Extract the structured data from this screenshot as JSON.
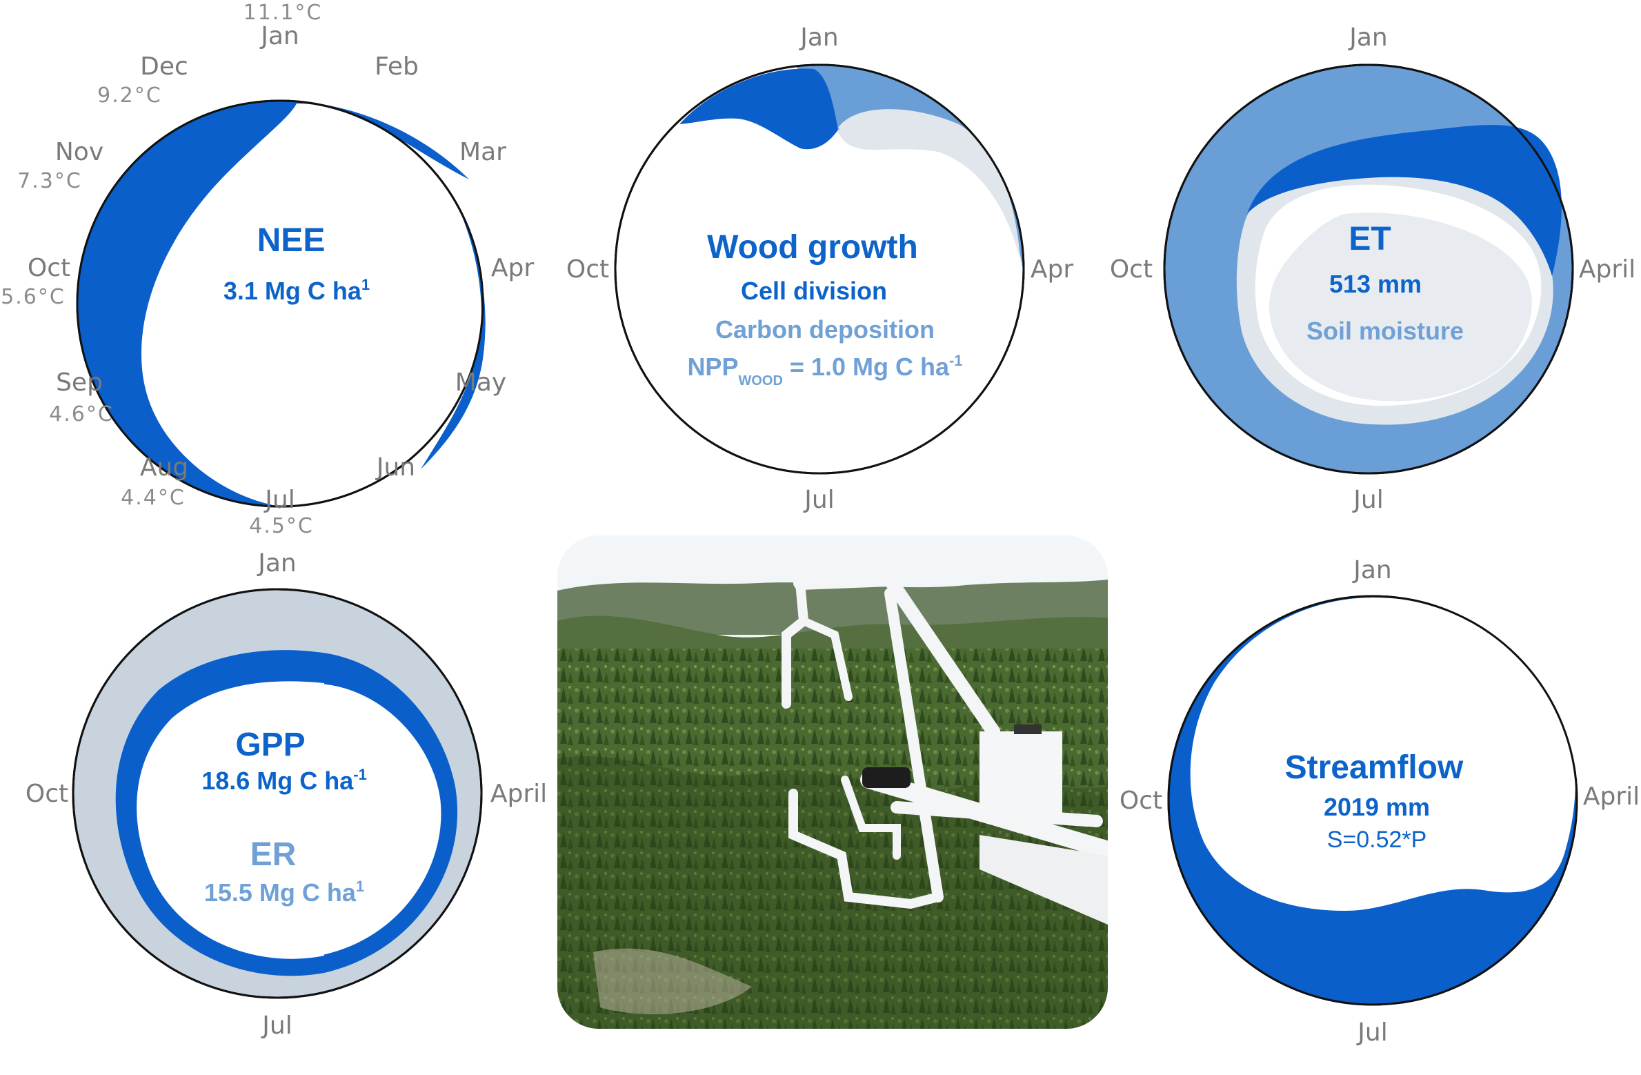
{
  "colors": {
    "dark_blue": "#0a5fcb",
    "mid_blue": "#6a9ed6",
    "light_grey_blue": "#c8d3de",
    "pale": "#e3e8ee",
    "outline": "#111111",
    "label_grey": "#7a7a7a"
  },
  "nee": {
    "months": {
      "jan": "Jan",
      "feb": "Feb",
      "mar": "Mar",
      "apr": "Apr",
      "may": "May",
      "jun": "Jun",
      "jul": "Jul",
      "aug": "Aug",
      "sep": "Sep",
      "oct": "Oct",
      "nov": "Nov",
      "dec": "Dec"
    },
    "temps": {
      "jan": "11.1°C",
      "dec": "9.2°C",
      "nov": "7.3°C",
      "oct": "5.6°C",
      "sep": "4.6°C",
      "aug": "4.4°C",
      "jul": "4.5°C"
    },
    "title": "NEE",
    "value": "3.1 Mg C ha",
    "value_sup": "1"
  },
  "wood": {
    "months": {
      "jan": "Jan",
      "apr": "Apr",
      "jul": "Jul",
      "oct": "Oct"
    },
    "title": "Wood growth",
    "line1": "Cell division",
    "line2": "Carbon deposition",
    "npp_prefix": "NPP",
    "npp_sub": "WOOD",
    "npp_value": " = 1.0 Mg C ha",
    "npp_sup": "-1"
  },
  "et": {
    "months": {
      "jan": "Jan",
      "apr": "April",
      "jul": "Jul",
      "oct": "Oct"
    },
    "title": "ET",
    "value": "513 mm",
    "line2": "Soil moisture"
  },
  "gpp": {
    "months": {
      "jan": "Jan",
      "apr": "April",
      "jul": "Jul",
      "oct": "Oct"
    },
    "title": "GPP",
    "value": "18.6 Mg C ha",
    "value_sup": "-1",
    "title2": "ER",
    "value2": "15.5 Mg C ha",
    "value2_sup": "1"
  },
  "streamflow": {
    "months": {
      "jan": "Jan",
      "apr": "April",
      "jul": "Jul",
      "oct": "Oct"
    },
    "title": "Streamflow",
    "value": "2019 mm",
    "line2": "S=0.52*P"
  },
  "photo": {
    "description": "eddy covariance instrument over conifer forest"
  }
}
